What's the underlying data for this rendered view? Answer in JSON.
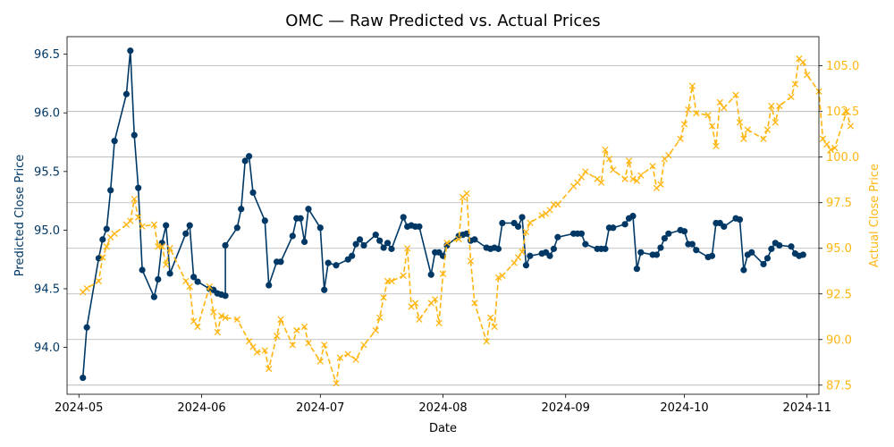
{
  "chart_data": {
    "type": "line",
    "title": "OMC — Raw Predicted vs. Actual Prices",
    "xlabel": "Date",
    "ylabel_left": "Predicted Close Price",
    "ylabel_right": "Actual Close Price",
    "xlim": [
      "2024-04-28",
      "2024-11-04"
    ],
    "ylim_left": [
      93.6,
      96.65
    ],
    "ylim_right": [
      87.0,
      106.6
    ],
    "x_ticks": [
      {
        "date": "2024-05-01",
        "label": "2024-05"
      },
      {
        "date": "2024-06-01",
        "label": "2024-06"
      },
      {
        "date": "2024-07-01",
        "label": "2024-07"
      },
      {
        "date": "2024-08-01",
        "label": "2024-08"
      },
      {
        "date": "2024-09-01",
        "label": "2024-09"
      },
      {
        "date": "2024-10-01",
        "label": "2024-10"
      },
      {
        "date": "2024-11-01",
        "label": "2024-11"
      }
    ],
    "y_ticks_left": [
      94.0,
      94.5,
      95.0,
      95.5,
      96.0,
      96.5
    ],
    "y_ticks_left_labels": [
      "94.0",
      "94.5",
      "95.0",
      "95.5",
      "96.0",
      "96.5"
    ],
    "y_ticks_right": [
      87.5,
      90.0,
      92.5,
      95.0,
      97.5,
      100.0,
      102.5,
      105.0
    ],
    "y_ticks_right_labels": [
      "87.5",
      "90.0",
      "92.5",
      "95.0",
      "97.5",
      "100.0",
      "102.5",
      "105.0"
    ],
    "grid": "horizontal-right-axis",
    "colors": {
      "predicted": "#003865",
      "actual": "#FFB612",
      "grid": "#b0b0b0"
    },
    "series": [
      {
        "axis": "left",
        "style": "solid-line-circle-markers",
        "points": [
          [
            "2024-05-02",
            93.74
          ],
          [
            "2024-05-03",
            94.17
          ],
          [
            "2024-05-06",
            94.76
          ],
          [
            "2024-05-07",
            94.92
          ],
          [
            "2024-05-08",
            95.01
          ],
          [
            "2024-05-09",
            95.34
          ],
          [
            "2024-05-10",
            95.76
          ],
          [
            "2024-05-13",
            96.16
          ],
          [
            "2024-05-14",
            96.53
          ],
          [
            "2024-05-15",
            95.81
          ],
          [
            "2024-05-16",
            95.36
          ],
          [
            "2024-05-17",
            94.66
          ],
          [
            "2024-05-20",
            94.43
          ],
          [
            "2024-05-21",
            94.58
          ],
          [
            "2024-05-22",
            94.89
          ],
          [
            "2024-05-23",
            95.04
          ],
          [
            "2024-05-24",
            94.63
          ],
          [
            "2024-05-28",
            94.97
          ],
          [
            "2024-05-29",
            95.04
          ],
          [
            "2024-05-30",
            94.6
          ],
          [
            "2024-05-31",
            94.56
          ],
          [
            "2024-06-03",
            94.5
          ],
          [
            "2024-06-04",
            94.49
          ],
          [
            "2024-06-05",
            94.46
          ],
          [
            "2024-06-06",
            94.45
          ],
          [
            "2024-06-07",
            94.44
          ],
          [
            "2024-06-07",
            94.87
          ],
          [
            "2024-06-10",
            95.02
          ],
          [
            "2024-06-11",
            95.18
          ],
          [
            "2024-06-12",
            95.59
          ],
          [
            "2024-06-13",
            95.63
          ],
          [
            "2024-06-14",
            95.32
          ],
          [
            "2024-06-17",
            95.08
          ],
          [
            "2024-06-18",
            94.53
          ],
          [
            "2024-06-20",
            94.73
          ],
          [
            "2024-06-21",
            94.73
          ],
          [
            "2024-06-24",
            94.95
          ],
          [
            "2024-06-25",
            95.1
          ],
          [
            "2024-06-26",
            95.1
          ],
          [
            "2024-06-27",
            94.9
          ],
          [
            "2024-06-28",
            95.18
          ],
          [
            "2024-07-01",
            95.02
          ],
          [
            "2024-07-02",
            94.49
          ],
          [
            "2024-07-03",
            94.72
          ],
          [
            "2024-07-05",
            94.7
          ],
          [
            "2024-07-08",
            94.75
          ],
          [
            "2024-07-09",
            94.78
          ],
          [
            "2024-07-10",
            94.88
          ],
          [
            "2024-07-11",
            94.92
          ],
          [
            "2024-07-12",
            94.87
          ],
          [
            "2024-07-15",
            94.96
          ],
          [
            "2024-07-16",
            94.91
          ],
          [
            "2024-07-17",
            94.85
          ],
          [
            "2024-07-18",
            94.89
          ],
          [
            "2024-07-19",
            94.84
          ],
          [
            "2024-07-22",
            95.11
          ],
          [
            "2024-07-23",
            95.03
          ],
          [
            "2024-07-24",
            95.04
          ],
          [
            "2024-07-25",
            95.03
          ],
          [
            "2024-07-26",
            95.03
          ],
          [
            "2024-07-29",
            94.62
          ],
          [
            "2024-07-30",
            94.81
          ],
          [
            "2024-07-31",
            94.81
          ],
          [
            "2024-08-01",
            94.78
          ],
          [
            "2024-08-02",
            94.87
          ],
          [
            "2024-08-05",
            94.95
          ],
          [
            "2024-08-06",
            94.96
          ],
          [
            "2024-08-07",
            94.97
          ],
          [
            "2024-08-08",
            94.91
          ],
          [
            "2024-08-09",
            94.92
          ],
          [
            "2024-08-12",
            94.85
          ],
          [
            "2024-08-13",
            94.84
          ],
          [
            "2024-08-14",
            94.85
          ],
          [
            "2024-08-15",
            94.84
          ],
          [
            "2024-08-16",
            95.06
          ],
          [
            "2024-08-19",
            95.06
          ],
          [
            "2024-08-20",
            95.03
          ],
          [
            "2024-08-21",
            95.11
          ],
          [
            "2024-08-22",
            94.7
          ],
          [
            "2024-08-23",
            94.78
          ],
          [
            "2024-08-26",
            94.8
          ],
          [
            "2024-08-27",
            94.81
          ],
          [
            "2024-08-28",
            94.78
          ],
          [
            "2024-08-29",
            94.84
          ],
          [
            "2024-08-30",
            94.94
          ],
          [
            "2024-09-03",
            94.97
          ],
          [
            "2024-09-04",
            94.97
          ],
          [
            "2024-09-05",
            94.97
          ],
          [
            "2024-09-06",
            94.88
          ],
          [
            "2024-09-09",
            94.84
          ],
          [
            "2024-09-10",
            94.84
          ],
          [
            "2024-09-11",
            94.84
          ],
          [
            "2024-09-12",
            95.02
          ],
          [
            "2024-09-13",
            95.02
          ],
          [
            "2024-09-16",
            95.05
          ],
          [
            "2024-09-17",
            95.1
          ],
          [
            "2024-09-18",
            95.12
          ],
          [
            "2024-09-19",
            94.67
          ],
          [
            "2024-09-20",
            94.81
          ],
          [
            "2024-09-23",
            94.79
          ],
          [
            "2024-09-24",
            94.79
          ],
          [
            "2024-09-25",
            94.85
          ],
          [
            "2024-09-26",
            94.93
          ],
          [
            "2024-09-27",
            94.97
          ],
          [
            "2024-09-30",
            95.0
          ],
          [
            "2024-10-01",
            94.99
          ],
          [
            "2024-10-02",
            94.88
          ],
          [
            "2024-10-03",
            94.88
          ],
          [
            "2024-10-04",
            94.83
          ],
          [
            "2024-10-07",
            94.77
          ],
          [
            "2024-10-08",
            94.78
          ],
          [
            "2024-10-09",
            95.06
          ],
          [
            "2024-10-10",
            95.06
          ],
          [
            "2024-10-11",
            95.03
          ],
          [
            "2024-10-14",
            95.1
          ],
          [
            "2024-10-15",
            95.09
          ],
          [
            "2024-10-16",
            94.66
          ],
          [
            "2024-10-17",
            94.79
          ],
          [
            "2024-10-18",
            94.81
          ],
          [
            "2024-10-21",
            94.71
          ],
          [
            "2024-10-22",
            94.76
          ],
          [
            "2024-10-23",
            94.84
          ],
          [
            "2024-10-24",
            94.89
          ],
          [
            "2024-10-25",
            94.87
          ],
          [
            "2024-10-28",
            94.86
          ],
          [
            "2024-10-29",
            94.8
          ],
          [
            "2024-10-30",
            94.78
          ],
          [
            "2024-10-31",
            94.79
          ]
        ]
      },
      {
        "axis": "right",
        "style": "dashed-line-x-markers",
        "points": [
          [
            "2024-05-02",
            92.6
          ],
          [
            "2024-05-03",
            92.8
          ],
          [
            "2024-05-06",
            93.2
          ],
          [
            "2024-05-07",
            94.5
          ],
          [
            "2024-05-08",
            95.1
          ],
          [
            "2024-05-09",
            95.6
          ],
          [
            "2024-05-10",
            95.8
          ],
          [
            "2024-05-13",
            96.3
          ],
          [
            "2024-05-14",
            96.5
          ],
          [
            "2024-05-15",
            97.7
          ],
          [
            "2024-05-16",
            96.7
          ],
          [
            "2024-05-17",
            96.2
          ],
          [
            "2024-05-20",
            96.3
          ],
          [
            "2024-05-21",
            95.1
          ],
          [
            "2024-05-22",
            95.1
          ],
          [
            "2024-05-23",
            94.1
          ],
          [
            "2024-05-24",
            95.0
          ],
          [
            "2024-05-28",
            93.2
          ],
          [
            "2024-05-29",
            92.9
          ],
          [
            "2024-05-30",
            91.0
          ],
          [
            "2024-05-31",
            90.7
          ],
          [
            "2024-06-03",
            92.9
          ],
          [
            "2024-06-04",
            91.5
          ],
          [
            "2024-06-05",
            90.4
          ],
          [
            "2024-06-06",
            91.3
          ],
          [
            "2024-06-07",
            91.2
          ],
          [
            "2024-06-10",
            91.1
          ],
          [
            "2024-06-13",
            89.9
          ],
          [
            "2024-06-14",
            89.6
          ],
          [
            "2024-06-15",
            89.3
          ],
          [
            "2024-06-17",
            89.4
          ],
          [
            "2024-06-18",
            88.4
          ],
          [
            "2024-06-20",
            90.2
          ],
          [
            "2024-06-21",
            91.1
          ],
          [
            "2024-06-24",
            89.7
          ],
          [
            "2024-06-25",
            90.5
          ],
          [
            "2024-06-27",
            90.7
          ],
          [
            "2024-06-28",
            89.8
          ],
          [
            "2024-07-01",
            88.8
          ],
          [
            "2024-07-02",
            89.7
          ],
          [
            "2024-07-05",
            87.6
          ],
          [
            "2024-07-06",
            89.0
          ],
          [
            "2024-07-08",
            89.2
          ],
          [
            "2024-07-10",
            88.9
          ],
          [
            "2024-07-12",
            89.7
          ],
          [
            "2024-07-15",
            90.5
          ],
          [
            "2024-07-16",
            91.2
          ],
          [
            "2024-07-17",
            92.3
          ],
          [
            "2024-07-18",
            93.2
          ],
          [
            "2024-07-19",
            93.2
          ],
          [
            "2024-07-22",
            93.5
          ],
          [
            "2024-07-23",
            95.0
          ],
          [
            "2024-07-24",
            91.8
          ],
          [
            "2024-07-25",
            92.0
          ],
          [
            "2024-07-26",
            91.1
          ],
          [
            "2024-07-29",
            92.0
          ],
          [
            "2024-07-30",
            92.2
          ],
          [
            "2024-07-31",
            90.9
          ],
          [
            "2024-08-01",
            93.6
          ],
          [
            "2024-08-02",
            95.3
          ],
          [
            "2024-08-05",
            95.5
          ],
          [
            "2024-08-06",
            97.8
          ],
          [
            "2024-08-07",
            98.0
          ],
          [
            "2024-08-08",
            94.3
          ],
          [
            "2024-08-09",
            92.0
          ],
          [
            "2024-08-12",
            89.9
          ],
          [
            "2024-08-13",
            91.2
          ],
          [
            "2024-08-14",
            90.7
          ],
          [
            "2024-08-15",
            93.4
          ],
          [
            "2024-08-16",
            93.5
          ],
          [
            "2024-08-19",
            94.2
          ],
          [
            "2024-08-20",
            94.5
          ],
          [
            "2024-08-21",
            94.8
          ],
          [
            "2024-08-22",
            95.9
          ],
          [
            "2024-08-23",
            96.4
          ],
          [
            "2024-08-26",
            96.8
          ],
          [
            "2024-08-27",
            96.9
          ],
          [
            "2024-08-28",
            97.1
          ],
          [
            "2024-08-29",
            97.4
          ],
          [
            "2024-08-30",
            97.4
          ],
          [
            "2024-09-03",
            98.4
          ],
          [
            "2024-09-04",
            98.6
          ],
          [
            "2024-09-05",
            98.9
          ],
          [
            "2024-09-06",
            99.2
          ],
          [
            "2024-09-09",
            98.8
          ],
          [
            "2024-09-10",
            98.6
          ],
          [
            "2024-09-11",
            100.4
          ],
          [
            "2024-09-12",
            99.9
          ],
          [
            "2024-09-13",
            99.3
          ],
          [
            "2024-09-16",
            98.8
          ],
          [
            "2024-09-17",
            99.8
          ],
          [
            "2024-09-18",
            98.8
          ],
          [
            "2024-09-19",
            98.7
          ],
          [
            "2024-09-20",
            99.0
          ],
          [
            "2024-09-23",
            99.5
          ],
          [
            "2024-09-24",
            98.3
          ],
          [
            "2024-09-25",
            98.5
          ],
          [
            "2024-09-26",
            99.9
          ],
          [
            "2024-09-27",
            100.1
          ],
          [
            "2024-09-30",
            101.0
          ],
          [
            "2024-10-01",
            101.8
          ],
          [
            "2024-10-02",
            102.6
          ],
          [
            "2024-10-03",
            103.9
          ],
          [
            "2024-10-04",
            102.4
          ],
          [
            "2024-10-07",
            102.3
          ],
          [
            "2024-10-08",
            101.7
          ],
          [
            "2024-10-09",
            100.6
          ],
          [
            "2024-10-10",
            103.0
          ],
          [
            "2024-10-11",
            102.7
          ],
          [
            "2024-10-14",
            103.4
          ],
          [
            "2024-10-15",
            101.9
          ],
          [
            "2024-10-16",
            101.0
          ],
          [
            "2024-10-17",
            101.5
          ],
          [
            "2024-10-21",
            101.0
          ],
          [
            "2024-10-22",
            101.5
          ],
          [
            "2024-10-23",
            102.8
          ],
          [
            "2024-10-24",
            101.9
          ],
          [
            "2024-10-25",
            102.8
          ],
          [
            "2024-10-28",
            103.3
          ],
          [
            "2024-10-29",
            104.0
          ],
          [
            "2024-10-30",
            105.4
          ],
          [
            "2024-10-31",
            105.2
          ],
          [
            "2024-11-01",
            104.5
          ],
          [
            "2024-11-04",
            103.6
          ],
          [
            "2024-11-05",
            101.0
          ],
          [
            "2024-11-06",
            100.7
          ],
          [
            "2024-11-07",
            100.4
          ],
          [
            "2024-11-08",
            100.5
          ],
          [
            "2024-11-11",
            102.5
          ],
          [
            "2024-11-12",
            101.7
          ]
        ]
      }
    ]
  }
}
